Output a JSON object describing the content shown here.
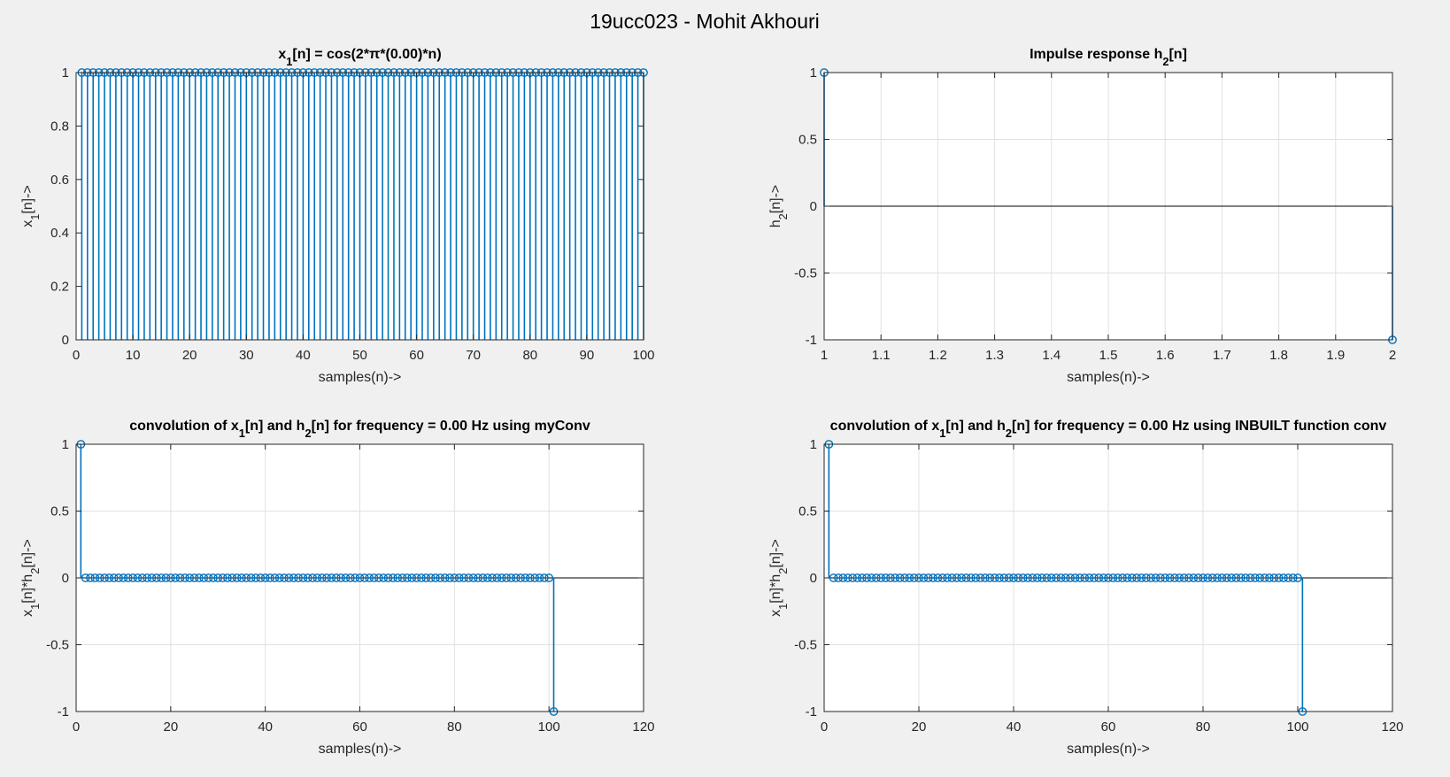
{
  "figure": {
    "title": "19ucc023 - Mohit Akhouri",
    "background": "#f0f0f0",
    "axes_background": "#ffffff",
    "stem_color": "#0072bd",
    "grid_color": "#e1e1e1",
    "baseline_color": "#000000"
  },
  "chart_data": [
    {
      "type": "stem",
      "title": [
        {
          "t": "x"
        },
        {
          "t": "1",
          "sub": true
        },
        {
          "t": "[n] = cos(2*π*(0.00)*n)"
        }
      ],
      "xlabel": "samples(n)->",
      "ylabel": [
        {
          "t": "x"
        },
        {
          "t": "1",
          "sub": true
        },
        {
          "t": "[n]->"
        }
      ],
      "xlim": [
        0,
        100
      ],
      "ylim": [
        0,
        1
      ],
      "xticks": [
        0,
        10,
        20,
        30,
        40,
        50,
        60,
        70,
        80,
        90,
        100
      ],
      "yticks": [
        0,
        0.2,
        0.4,
        0.6,
        0.8,
        1
      ],
      "grid": false,
      "series": [
        {
          "x_start": 1,
          "x_end": 100,
          "value": 1
        }
      ]
    },
    {
      "type": "stem",
      "title": [
        {
          "t": "Impulse response h"
        },
        {
          "t": "2",
          "sub": true
        },
        {
          "t": "[n]"
        }
      ],
      "xlabel": "samples(n)->",
      "ylabel": [
        {
          "t": "h"
        },
        {
          "t": "2",
          "sub": true
        },
        {
          "t": "[n]->"
        }
      ],
      "xlim": [
        1,
        2
      ],
      "ylim": [
        -1,
        1
      ],
      "xticks": [
        1,
        1.1,
        1.2,
        1.3,
        1.4,
        1.5,
        1.6,
        1.7,
        1.8,
        1.9,
        2
      ],
      "yticks": [
        -1,
        -0.5,
        0,
        0.5,
        1
      ],
      "grid": true,
      "points": [
        [
          1,
          1
        ],
        [
          2,
          -1
        ]
      ]
    },
    {
      "type": "stem",
      "title": [
        {
          "t": "convolution of x"
        },
        {
          "t": "1",
          "sub": true
        },
        {
          "t": "[n] and h"
        },
        {
          "t": "2",
          "sub": true
        },
        {
          "t": "[n] for frequency = 0.00 Hz using myConv"
        }
      ],
      "xlabel": "samples(n)->",
      "ylabel": [
        {
          "t": "x"
        },
        {
          "t": "1",
          "sub": true
        },
        {
          "t": "[n]*h"
        },
        {
          "t": "2",
          "sub": true
        },
        {
          "t": "[n]->"
        }
      ],
      "xlim": [
        0,
        120
      ],
      "ylim": [
        -1,
        1
      ],
      "xticks": [
        0,
        20,
        40,
        60,
        80,
        100,
        120
      ],
      "yticks": [
        -1,
        -0.5,
        0,
        0.5,
        1
      ],
      "grid": true,
      "points": [
        [
          1,
          1
        ],
        [
          101,
          -1
        ]
      ],
      "zero_range": [
        2,
        100
      ]
    },
    {
      "type": "stem",
      "title": [
        {
          "t": "convolution of x"
        },
        {
          "t": "1",
          "sub": true
        },
        {
          "t": "[n] and h"
        },
        {
          "t": "2",
          "sub": true
        },
        {
          "t": "[n] for frequency = 0.00 Hz using INBUILT function conv"
        }
      ],
      "xlabel": "samples(n)->",
      "ylabel": [
        {
          "t": "x"
        },
        {
          "t": "1",
          "sub": true
        },
        {
          "t": "[n]*h"
        },
        {
          "t": "2",
          "sub": true
        },
        {
          "t": "[n]->"
        }
      ],
      "xlim": [
        0,
        120
      ],
      "ylim": [
        -1,
        1
      ],
      "xticks": [
        0,
        20,
        40,
        60,
        80,
        100,
        120
      ],
      "yticks": [
        -1,
        -0.5,
        0,
        0.5,
        1
      ],
      "grid": true,
      "points": [
        [
          1,
          1
        ],
        [
          101,
          -1
        ]
      ],
      "zero_range": [
        2,
        100
      ]
    }
  ]
}
